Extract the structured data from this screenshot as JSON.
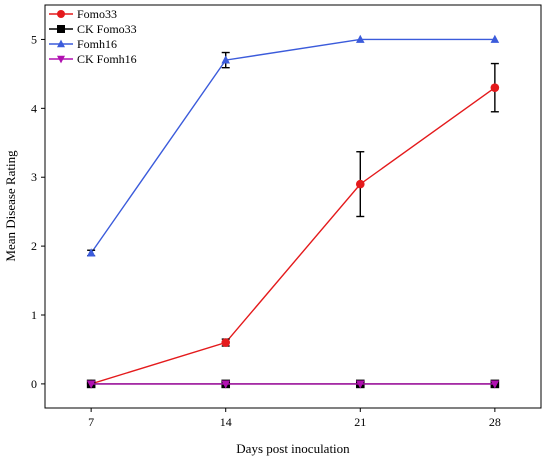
{
  "chart_data": {
    "type": "line",
    "xlabel": "Days post inoculation",
    "ylabel": "Mean Disease Rating",
    "x": [
      7,
      14,
      21,
      28
    ],
    "xlim": [
      4.6,
      30.4
    ],
    "ylim": [
      -0.35,
      5.5
    ],
    "xticks": [
      "7",
      "14",
      "21",
      "28"
    ],
    "yticks": [
      "0",
      "1",
      "2",
      "3",
      "4",
      "5"
    ],
    "legend_position": "top-left",
    "grid": false,
    "series": [
      {
        "name": "Fomo33",
        "color": "#e41a1c",
        "marker": "circle",
        "values": [
          0,
          0.6,
          2.9,
          4.3
        ],
        "errors": [
          0,
          0.05,
          0.47,
          0.35
        ]
      },
      {
        "name": "CK Fomo33",
        "color": "#000000",
        "marker": "square",
        "values": [
          0,
          0,
          0,
          0
        ],
        "errors": [
          0,
          0,
          0,
          0
        ]
      },
      {
        "name": "Fomh16",
        "color": "#3b5bdb",
        "marker": "triangle-up",
        "values": [
          1.9,
          4.7,
          5.0,
          5.0
        ],
        "errors": [
          0.04,
          0.11,
          0,
          0
        ]
      },
      {
        "name": "CK Fomh16",
        "color": "#b010b0",
        "marker": "triangle-down",
        "values": [
          0,
          0,
          0,
          0
        ],
        "errors": [
          0,
          0,
          0,
          0
        ]
      }
    ]
  }
}
